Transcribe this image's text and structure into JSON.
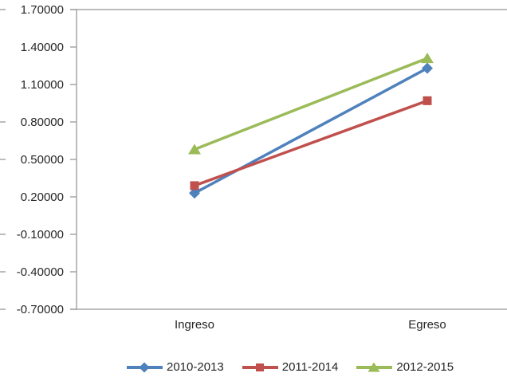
{
  "chart_data": {
    "type": "line",
    "title": "",
    "xlabel": "",
    "ylabel": "",
    "categories": [
      "Ingreso",
      "Egreso"
    ],
    "series": [
      {
        "name": "2010-2013",
        "values": [
          0.23,
          1.23
        ],
        "color": "#4F81BD",
        "marker": "diamond"
      },
      {
        "name": "2011-2014",
        "values": [
          0.29,
          0.97
        ],
        "color": "#C0504D",
        "marker": "square"
      },
      {
        "name": "2012-2015",
        "values": [
          0.58,
          1.31
        ],
        "color": "#9BBB59",
        "marker": "triangle"
      }
    ],
    "ylim": [
      -0.7,
      1.7
    ],
    "ytick_step": 0.3,
    "ytick_labels": [
      "1.70000",
      "1.40000",
      "1.10000",
      "0.80000",
      "0.50000",
      "0.20000",
      "-0.10000",
      "-0.40000",
      "-0.70000"
    ],
    "grid": false,
    "legend_position": "bottom",
    "axis_color": "#A6A6A6",
    "text_color": "#262626"
  }
}
